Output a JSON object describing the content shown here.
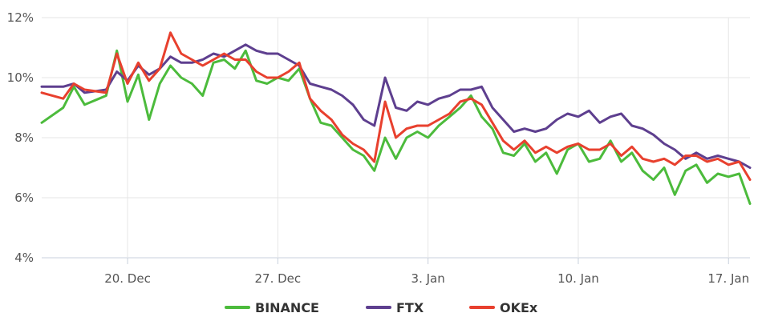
{
  "chart_data": {
    "type": "line",
    "x_domain": [
      "2020-12-16",
      "2021-01-18"
    ],
    "x_ticks": [
      {
        "date": "2020-12-20",
        "label": "20. Dec"
      },
      {
        "date": "2020-12-27",
        "label": "27. Dec"
      },
      {
        "date": "2021-01-03",
        "label": "3. Jan"
      },
      {
        "date": "2021-01-10",
        "label": "10. Jan"
      },
      {
        "date": "2021-01-17",
        "label": "17. Jan"
      }
    ],
    "y_ticks": [
      {
        "value": 4,
        "label": "4%"
      },
      {
        "value": 6,
        "label": "6%"
      },
      {
        "value": 8,
        "label": "8%"
      },
      {
        "value": 10,
        "label": "10%"
      },
      {
        "value": 12,
        "label": "12%"
      }
    ],
    "ylim": [
      4,
      12
    ],
    "grid": "horizontal",
    "legend": "bottom-center",
    "series": [
      {
        "name": "BINANCE",
        "color": "#4cbb3c",
        "points": [
          [
            "2020-12-16",
            8.5
          ],
          [
            "2020-12-17",
            9.0
          ],
          [
            "2020-12-17T12:00",
            9.7
          ],
          [
            "2020-12-18",
            9.1
          ],
          [
            "2020-12-19",
            9.4
          ],
          [
            "2020-12-19T12:00",
            10.9
          ],
          [
            "2020-12-20",
            9.2
          ],
          [
            "2020-12-20T12:00",
            10.1
          ],
          [
            "2020-12-21",
            8.6
          ],
          [
            "2020-12-21T12:00",
            9.8
          ],
          [
            "2020-12-22",
            10.4
          ],
          [
            "2020-12-22T12:00",
            10.0
          ],
          [
            "2020-12-23",
            9.8
          ],
          [
            "2020-12-23T12:00",
            9.4
          ],
          [
            "2020-12-24",
            10.5
          ],
          [
            "2020-12-24T12:00",
            10.6
          ],
          [
            "2020-12-25",
            10.3
          ],
          [
            "2020-12-25T12:00",
            10.9
          ],
          [
            "2020-12-26",
            9.9
          ],
          [
            "2020-12-26T12:00",
            9.8
          ],
          [
            "2020-12-27",
            10.0
          ],
          [
            "2020-12-27T12:00",
            9.9
          ],
          [
            "2020-12-28",
            10.3
          ],
          [
            "2020-12-28T12:00",
            9.3
          ],
          [
            "2020-12-29",
            8.5
          ],
          [
            "2020-12-29T12:00",
            8.4
          ],
          [
            "2020-12-30",
            8.0
          ],
          [
            "2020-12-30T12:00",
            7.6
          ],
          [
            "2020-12-31",
            7.4
          ],
          [
            "2020-12-31T12:00",
            6.9
          ],
          [
            "2021-01-01",
            8.0
          ],
          [
            "2021-01-01T12:00",
            7.3
          ],
          [
            "2021-01-02",
            8.0
          ],
          [
            "2021-01-02T12:00",
            8.2
          ],
          [
            "2021-01-03",
            8.0
          ],
          [
            "2021-01-03T12:00",
            8.4
          ],
          [
            "2021-01-04",
            8.7
          ],
          [
            "2021-01-04T12:00",
            9.0
          ],
          [
            "2021-01-05",
            9.4
          ],
          [
            "2021-01-05T12:00",
            8.7
          ],
          [
            "2021-01-06",
            8.3
          ],
          [
            "2021-01-06T12:00",
            7.5
          ],
          [
            "2021-01-07",
            7.4
          ],
          [
            "2021-01-07T12:00",
            7.8
          ],
          [
            "2021-01-08",
            7.2
          ],
          [
            "2021-01-08T12:00",
            7.5
          ],
          [
            "2021-01-09",
            6.8
          ],
          [
            "2021-01-09T12:00",
            7.6
          ],
          [
            "2021-01-10",
            7.8
          ],
          [
            "2021-01-10T12:00",
            7.2
          ],
          [
            "2021-01-11",
            7.3
          ],
          [
            "2021-01-11T12:00",
            7.9
          ],
          [
            "2021-01-12",
            7.2
          ],
          [
            "2021-01-12T12:00",
            7.5
          ],
          [
            "2021-01-13",
            6.9
          ],
          [
            "2021-01-13T12:00",
            6.6
          ],
          [
            "2021-01-14",
            7.0
          ],
          [
            "2021-01-14T12:00",
            6.1
          ],
          [
            "2021-01-15",
            6.9
          ],
          [
            "2021-01-15T12:00",
            7.1
          ],
          [
            "2021-01-16",
            6.5
          ],
          [
            "2021-01-16T12:00",
            6.8
          ],
          [
            "2021-01-17",
            6.7
          ],
          [
            "2021-01-17T12:00",
            6.8
          ],
          [
            "2021-01-18",
            5.8
          ]
        ]
      },
      {
        "name": "FTX",
        "color": "#5e3f8f",
        "points": [
          [
            "2020-12-16",
            9.7
          ],
          [
            "2020-12-17",
            9.7
          ],
          [
            "2020-12-17T12:00",
            9.8
          ],
          [
            "2020-12-18",
            9.5
          ],
          [
            "2020-12-19",
            9.6
          ],
          [
            "2020-12-19T12:00",
            10.2
          ],
          [
            "2020-12-20",
            9.9
          ],
          [
            "2020-12-20T12:00",
            10.4
          ],
          [
            "2020-12-21",
            10.1
          ],
          [
            "2020-12-21T12:00",
            10.3
          ],
          [
            "2020-12-22",
            10.7
          ],
          [
            "2020-12-22T12:00",
            10.5
          ],
          [
            "2020-12-23",
            10.5
          ],
          [
            "2020-12-23T12:00",
            10.6
          ],
          [
            "2020-12-24",
            10.8
          ],
          [
            "2020-12-24T12:00",
            10.7
          ],
          [
            "2020-12-25",
            10.9
          ],
          [
            "2020-12-25T12:00",
            11.1
          ],
          [
            "2020-12-26",
            10.9
          ],
          [
            "2020-12-26T12:00",
            10.8
          ],
          [
            "2020-12-27",
            10.8
          ],
          [
            "2020-12-27T12:00",
            10.6
          ],
          [
            "2020-12-28",
            10.4
          ],
          [
            "2020-12-28T12:00",
            9.8
          ],
          [
            "2020-12-29",
            9.7
          ],
          [
            "2020-12-29T12:00",
            9.6
          ],
          [
            "2020-12-30",
            9.4
          ],
          [
            "2020-12-30T12:00",
            9.1
          ],
          [
            "2020-12-31",
            8.6
          ],
          [
            "2020-12-31T12:00",
            8.4
          ],
          [
            "2021-01-01",
            10.0
          ],
          [
            "2021-01-01T12:00",
            9.0
          ],
          [
            "2021-01-02",
            8.9
          ],
          [
            "2021-01-02T12:00",
            9.2
          ],
          [
            "2021-01-03",
            9.1
          ],
          [
            "2021-01-03T12:00",
            9.3
          ],
          [
            "2021-01-04",
            9.4
          ],
          [
            "2021-01-04T12:00",
            9.6
          ],
          [
            "2021-01-05",
            9.6
          ],
          [
            "2021-01-05T12:00",
            9.7
          ],
          [
            "2021-01-06",
            9.0
          ],
          [
            "2021-01-06T12:00",
            8.6
          ],
          [
            "2021-01-07",
            8.2
          ],
          [
            "2021-01-07T12:00",
            8.3
          ],
          [
            "2021-01-08",
            8.2
          ],
          [
            "2021-01-08T12:00",
            8.3
          ],
          [
            "2021-01-09",
            8.6
          ],
          [
            "2021-01-09T12:00",
            8.8
          ],
          [
            "2021-01-10",
            8.7
          ],
          [
            "2021-01-10T12:00",
            8.9
          ],
          [
            "2021-01-11",
            8.5
          ],
          [
            "2021-01-11T12:00",
            8.7
          ],
          [
            "2021-01-12",
            8.8
          ],
          [
            "2021-01-12T12:00",
            8.4
          ],
          [
            "2021-01-13",
            8.3
          ],
          [
            "2021-01-13T12:00",
            8.1
          ],
          [
            "2021-01-14",
            7.8
          ],
          [
            "2021-01-14T12:00",
            7.6
          ],
          [
            "2021-01-15",
            7.3
          ],
          [
            "2021-01-15T12:00",
            7.5
          ],
          [
            "2021-01-16",
            7.3
          ],
          [
            "2021-01-16T12:00",
            7.4
          ],
          [
            "2021-01-17",
            7.3
          ],
          [
            "2021-01-17T12:00",
            7.2
          ],
          [
            "2021-01-18",
            7.0
          ]
        ]
      },
      {
        "name": "OKEx",
        "color": "#e8402e",
        "points": [
          [
            "2020-12-16",
            9.5
          ],
          [
            "2020-12-17",
            9.3
          ],
          [
            "2020-12-17T12:00",
            9.8
          ],
          [
            "2020-12-18",
            9.6
          ],
          [
            "2020-12-19",
            9.5
          ],
          [
            "2020-12-19T12:00",
            10.8
          ],
          [
            "2020-12-20",
            9.8
          ],
          [
            "2020-12-20T12:00",
            10.5
          ],
          [
            "2020-12-21",
            9.9
          ],
          [
            "2020-12-21T12:00",
            10.3
          ],
          [
            "2020-12-22",
            11.5
          ],
          [
            "2020-12-22T12:00",
            10.8
          ],
          [
            "2020-12-23",
            10.6
          ],
          [
            "2020-12-23T12:00",
            10.4
          ],
          [
            "2020-12-24",
            10.6
          ],
          [
            "2020-12-24T12:00",
            10.8
          ],
          [
            "2020-12-25",
            10.6
          ],
          [
            "2020-12-25T12:00",
            10.6
          ],
          [
            "2020-12-26",
            10.2
          ],
          [
            "2020-12-26T12:00",
            10.0
          ],
          [
            "2020-12-27",
            10.0
          ],
          [
            "2020-12-27T12:00",
            10.2
          ],
          [
            "2020-12-28",
            10.5
          ],
          [
            "2020-12-28T12:00",
            9.3
          ],
          [
            "2020-12-29",
            8.9
          ],
          [
            "2020-12-29T12:00",
            8.6
          ],
          [
            "2020-12-30",
            8.1
          ],
          [
            "2020-12-30T12:00",
            7.8
          ],
          [
            "2020-12-31",
            7.6
          ],
          [
            "2020-12-31T12:00",
            7.2
          ],
          [
            "2021-01-01",
            9.2
          ],
          [
            "2021-01-01T12:00",
            8.0
          ],
          [
            "2021-01-02",
            8.3
          ],
          [
            "2021-01-02T12:00",
            8.4
          ],
          [
            "2021-01-03",
            8.4
          ],
          [
            "2021-01-03T12:00",
            8.6
          ],
          [
            "2021-01-04",
            8.8
          ],
          [
            "2021-01-04T12:00",
            9.2
          ],
          [
            "2021-01-05",
            9.3
          ],
          [
            "2021-01-05T12:00",
            9.1
          ],
          [
            "2021-01-06",
            8.5
          ],
          [
            "2021-01-06T12:00",
            7.9
          ],
          [
            "2021-01-07",
            7.6
          ],
          [
            "2021-01-07T12:00",
            7.9
          ],
          [
            "2021-01-08",
            7.5
          ],
          [
            "2021-01-08T12:00",
            7.7
          ],
          [
            "2021-01-09",
            7.5
          ],
          [
            "2021-01-09T12:00",
            7.7
          ],
          [
            "2021-01-10",
            7.8
          ],
          [
            "2021-01-10T12:00",
            7.6
          ],
          [
            "2021-01-11",
            7.6
          ],
          [
            "2021-01-11T12:00",
            7.8
          ],
          [
            "2021-01-12",
            7.4
          ],
          [
            "2021-01-12T12:00",
            7.7
          ],
          [
            "2021-01-13",
            7.3
          ],
          [
            "2021-01-13T12:00",
            7.2
          ],
          [
            "2021-01-14",
            7.3
          ],
          [
            "2021-01-14T12:00",
            7.1
          ],
          [
            "2021-01-15",
            7.4
          ],
          [
            "2021-01-15T12:00",
            7.4
          ],
          [
            "2021-01-16",
            7.2
          ],
          [
            "2021-01-16T12:00",
            7.3
          ],
          [
            "2021-01-17",
            7.1
          ],
          [
            "2021-01-17T12:00",
            7.2
          ],
          [
            "2021-01-18",
            6.6
          ]
        ]
      }
    ]
  }
}
